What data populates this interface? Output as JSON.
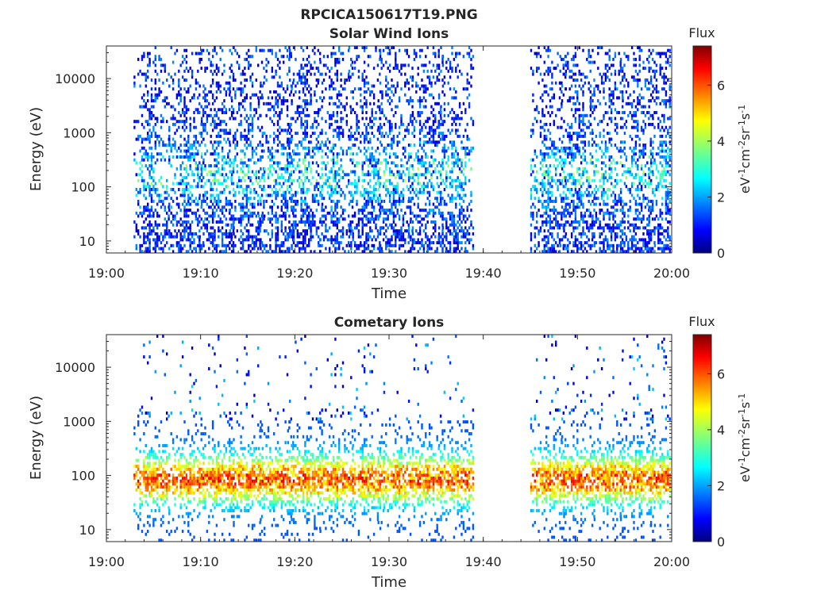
{
  "figure_title": "RPCICA150617T19.PNG",
  "chart_data": [
    {
      "type": "heatmap",
      "title": "Solar Wind Ions",
      "xlabel": "Time",
      "ylabel": "Energy (eV)",
      "x_ticks": [
        "19:00",
        "19:10",
        "19:20",
        "19:30",
        "19:40",
        "19:50",
        "20:00"
      ],
      "xlim": [
        "19:00",
        "20:00"
      ],
      "y_scale": "log",
      "y_ticks": [
        "10",
        "100",
        "1000",
        "10000"
      ],
      "ylim": [
        6,
        40000
      ],
      "colorbar": {
        "label": "Flux",
        "unit": "eV-1cm-2sr-1s-1",
        "ticks": [
          "0",
          "2",
          "4",
          "6"
        ],
        "range": [
          0,
          7.4
        ],
        "colormap": "jet"
      },
      "sweep_times_min": [
        4.7,
        8.4,
        11.6,
        14.8,
        17.9,
        21.0,
        24.2,
        27.5,
        30.6,
        33.8,
        37.0,
        46.8,
        49.9,
        53.1,
        56.3,
        59.3
      ],
      "peak_flux": 5.2,
      "flux_range_eV": [
        6,
        40000
      ]
    },
    {
      "type": "heatmap",
      "title": "Cometary Ions",
      "xlabel": "Time",
      "ylabel": "Energy (eV)",
      "x_ticks": [
        "19:00",
        "19:10",
        "19:20",
        "19:30",
        "19:40",
        "19:50",
        "20:00"
      ],
      "xlim": [
        "19:00",
        "20:00"
      ],
      "y_scale": "log",
      "y_ticks": [
        "10",
        "100",
        "1000",
        "10000"
      ],
      "ylim": [
        6,
        40000
      ],
      "colorbar": {
        "label": "Flux",
        "unit": "eV-1cm-2sr-1s-1",
        "ticks": [
          "0",
          "2",
          "4",
          "6"
        ],
        "range": [
          0,
          7.4
        ],
        "colormap": "jet"
      },
      "sweep_times_min": [
        4.7,
        8.4,
        11.6,
        14.8,
        17.9,
        21.0,
        24.2,
        27.5,
        30.6,
        33.8,
        37.0,
        46.8,
        49.9,
        53.1,
        56.3,
        59.3
      ],
      "peak_flux": 6.8,
      "core_energy_eV": 80
    }
  ]
}
